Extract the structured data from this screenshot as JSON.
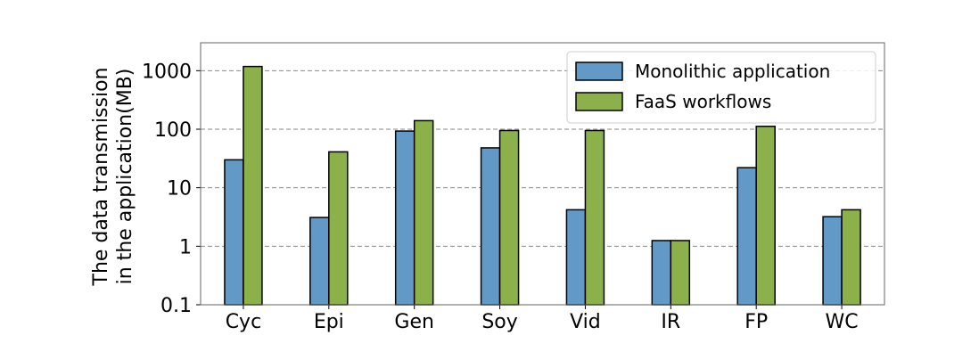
{
  "chart_data": {
    "type": "bar",
    "title": "",
    "xlabel": "",
    "ylabel_lines": [
      "The data transmission",
      "in the application(MB)"
    ],
    "yscale": "log",
    "ylim": [
      0.1,
      3000
    ],
    "yticks": [
      0.1,
      1,
      10,
      100,
      1000
    ],
    "ytick_labels": [
      "0.1",
      "1",
      "10",
      "100",
      "1000"
    ],
    "grid": "y-major-dashed",
    "categories": [
      "Cyc",
      "Epi",
      "Gen",
      "Soy",
      "Vid",
      "IR",
      "FP",
      "WC"
    ],
    "series": [
      {
        "name": "Monolithic application",
        "color": "#6399c6",
        "values": [
          30,
          3.1,
          93,
          48,
          4.2,
          1.25,
          22,
          3.2
        ]
      },
      {
        "name": "FaaS workflows",
        "color": "#8cb04a",
        "values": [
          1180,
          41,
          140,
          95,
          95,
          1.25,
          112,
          4.2
        ]
      }
    ],
    "legend_position": "top-right"
  }
}
